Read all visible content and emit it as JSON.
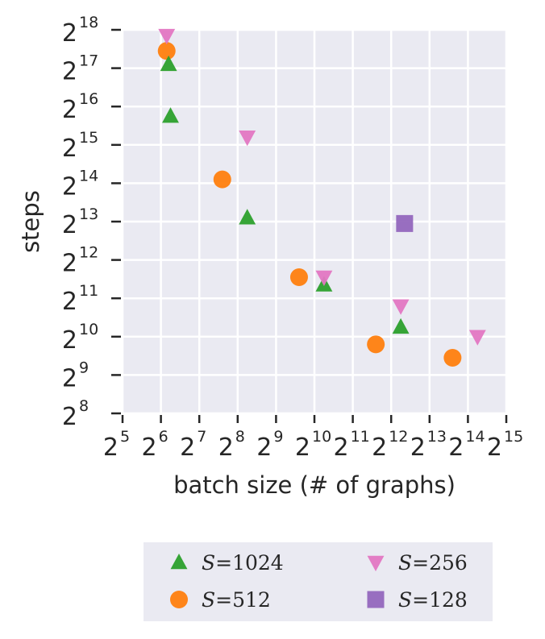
{
  "chart_data": {
    "type": "scatter",
    "xlabel": "batch size (# of graphs)",
    "ylabel": "steps",
    "x_scale": "log2",
    "y_scale": "log2",
    "xlim_exp": [
      5,
      15
    ],
    "ylim_exp": [
      8,
      18
    ],
    "x_ticks": [
      {
        "base": "2",
        "exp": "5"
      },
      {
        "base": "2",
        "exp": "6"
      },
      {
        "base": "2",
        "exp": "7"
      },
      {
        "base": "2",
        "exp": "8"
      },
      {
        "base": "2",
        "exp": "9"
      },
      {
        "base": "2",
        "exp": "10"
      },
      {
        "base": "2",
        "exp": "11"
      },
      {
        "base": "2",
        "exp": "12"
      },
      {
        "base": "2",
        "exp": "13"
      },
      {
        "base": "2",
        "exp": "14"
      },
      {
        "base": "2",
        "exp": "15"
      }
    ],
    "y_ticks": [
      {
        "base": "2",
        "exp": "8"
      },
      {
        "base": "2",
        "exp": "9"
      },
      {
        "base": "2",
        "exp": "10"
      },
      {
        "base": "2",
        "exp": "11"
      },
      {
        "base": "2",
        "exp": "12"
      },
      {
        "base": "2",
        "exp": "13"
      },
      {
        "base": "2",
        "exp": "14"
      },
      {
        "base": "2",
        "exp": "15"
      },
      {
        "base": "2",
        "exp": "16"
      },
      {
        "base": "2",
        "exp": "17"
      },
      {
        "base": "2",
        "exp": "18"
      }
    ],
    "grid": true,
    "legend_position": "bottom-outside",
    "series": [
      {
        "label": {
          "var": "S",
          "eq": "=",
          "num": "1024"
        },
        "marker": "triangle-up",
        "color": "#2ca02c",
        "points": [
          {
            "x": 6.2,
            "y": 17.1
          },
          {
            "x": 6.25,
            "y": 15.75
          },
          {
            "x": 8.25,
            "y": 13.1
          },
          {
            "x": 10.25,
            "y": 11.35
          },
          {
            "x": 12.25,
            "y": 10.25
          }
        ]
      },
      {
        "label": {
          "var": "S",
          "eq": "=",
          "num": "512"
        },
        "marker": "circle",
        "color": "#ff7f0e",
        "points": [
          {
            "x": 6.15,
            "y": 17.45
          },
          {
            "x": 7.6,
            "y": 14.1
          },
          {
            "x": 9.6,
            "y": 11.55
          },
          {
            "x": 11.6,
            "y": 9.8
          },
          {
            "x": 13.6,
            "y": 9.45
          }
        ]
      },
      {
        "label": {
          "var": "S",
          "eq": "=",
          "num": "256"
        },
        "marker": "triangle-down",
        "color": "#e377c2",
        "points": [
          {
            "x": 6.15,
            "y": 17.85
          },
          {
            "x": 8.25,
            "y": 15.2
          },
          {
            "x": 10.25,
            "y": 11.55
          },
          {
            "x": 12.25,
            "y": 10.8
          },
          {
            "x": 14.25,
            "y": 10.0
          }
        ]
      },
      {
        "label": {
          "var": "S",
          "eq": "=",
          "num": "128"
        },
        "marker": "square",
        "color": "#9467bd",
        "points": [
          {
            "x": 12.35,
            "y": 12.95
          }
        ]
      }
    ]
  }
}
